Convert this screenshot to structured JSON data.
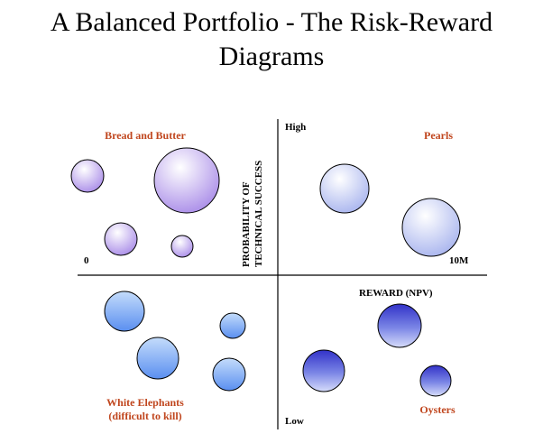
{
  "title": {
    "line1": "A Balanced Portfolio - The Risk-Reward",
    "line2": "Diagrams"
  },
  "axes": {
    "y_top": "High",
    "y_bottom": "Low",
    "y_label_line1": "PROBABILITY OF",
    "y_label_line2": "TECHNICAL SUCCESS",
    "x_left": "0",
    "x_right": "10M",
    "x_label": "REWARD (NPV)"
  },
  "quadrants": {
    "top_left": "Bread and Butter",
    "top_right": "Pearls",
    "bottom_left_line1": "White Elephants",
    "bottom_left_line2": "(difficult to kill)",
    "bottom_right": "Oysters"
  },
  "colors": {
    "label": "#c0461e",
    "purple_light": "#ffffff",
    "purple_dark": "#a98ce8",
    "lavender_dark": "#a8b4ee",
    "blue_dark": "#5a8ff0",
    "indigo_dark": "#3a3ad6",
    "axis": "#000000"
  },
  "bubbles": [
    {
      "quadrant": "top-left",
      "fill": "purple"
    },
    {
      "quadrant": "top-left",
      "fill": "purple"
    },
    {
      "quadrant": "top-left",
      "fill": "purple"
    },
    {
      "quadrant": "top-left",
      "fill": "purple"
    },
    {
      "quadrant": "top-right",
      "fill": "lavender"
    },
    {
      "quadrant": "top-right",
      "fill": "lavender"
    },
    {
      "quadrant": "bottom-left",
      "fill": "blue"
    },
    {
      "quadrant": "bottom-left",
      "fill": "blue"
    },
    {
      "quadrant": "bottom-left",
      "fill": "blue"
    },
    {
      "quadrant": "bottom-left",
      "fill": "blue"
    },
    {
      "quadrant": "bottom-right",
      "fill": "indigo"
    },
    {
      "quadrant": "bottom-right",
      "fill": "indigo"
    },
    {
      "quadrant": "bottom-right",
      "fill": "indigo"
    }
  ]
}
